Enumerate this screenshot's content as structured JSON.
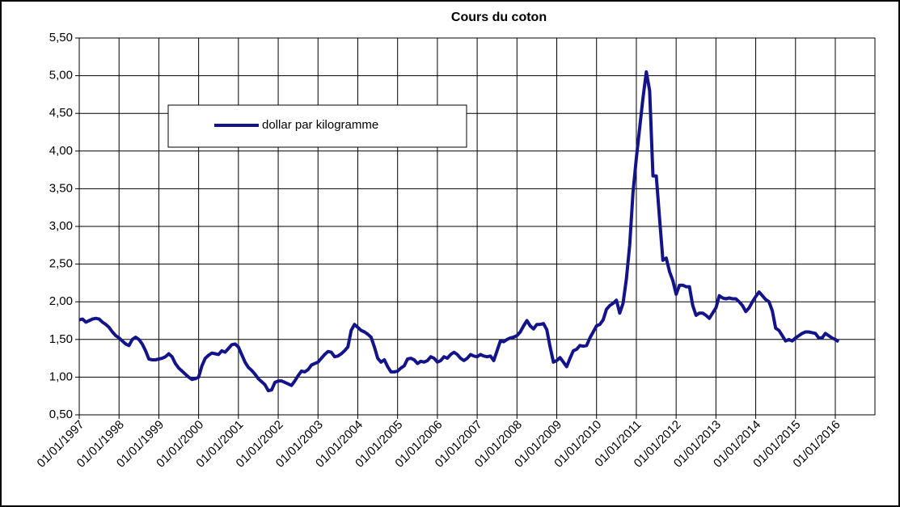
{
  "chart_data": {
    "type": "line",
    "title": "Cours du coton",
    "categories": [
      "01/01/1997",
      null,
      null,
      null,
      null,
      null,
      null,
      null,
      null,
      null,
      null,
      null,
      "01/01/1998",
      null,
      null,
      null,
      null,
      null,
      null,
      null,
      null,
      null,
      null,
      null,
      "01/01/1999",
      null,
      null,
      null,
      null,
      null,
      null,
      null,
      null,
      null,
      null,
      null,
      "01/01/2000",
      null,
      null,
      null,
      null,
      null,
      null,
      null,
      null,
      null,
      null,
      null,
      "01/01/2001",
      null,
      null,
      null,
      null,
      null,
      null,
      null,
      null,
      null,
      null,
      null,
      "01/01/2002",
      null,
      null,
      null,
      null,
      null,
      null,
      null,
      null,
      null,
      null,
      null,
      "01/01/2003",
      null,
      null,
      null,
      null,
      null,
      null,
      null,
      null,
      null,
      null,
      null,
      "01/01/2004",
      null,
      null,
      null,
      null,
      null,
      null,
      null,
      null,
      null,
      null,
      null,
      "01/01/2005",
      null,
      null,
      null,
      null,
      null,
      null,
      null,
      null,
      null,
      null,
      null,
      "01/01/2006",
      null,
      null,
      null,
      null,
      null,
      null,
      null,
      null,
      null,
      null,
      null,
      "01/01/2007",
      null,
      null,
      null,
      null,
      null,
      null,
      null,
      null,
      null,
      null,
      null,
      "01/01/2008",
      null,
      null,
      null,
      null,
      null,
      null,
      null,
      null,
      null,
      null,
      null,
      "01/01/2009",
      null,
      null,
      null,
      null,
      null,
      null,
      null,
      null,
      null,
      null,
      null,
      "01/01/2010",
      null,
      null,
      null,
      null,
      null,
      null,
      null,
      null,
      null,
      null,
      null,
      "01/01/2011",
      null,
      null,
      null,
      null,
      null,
      null,
      null,
      null,
      null,
      null,
      null,
      "01/01/2012",
      null,
      null,
      null,
      null,
      null,
      null,
      null,
      null,
      null,
      null,
      null,
      "01/01/2013",
      null,
      null,
      null,
      null,
      null,
      null,
      null,
      null,
      null,
      null,
      null,
      "01/01/2014",
      null,
      null,
      null,
      null,
      null,
      null,
      null,
      null,
      null,
      null,
      null,
      "01/01/2015",
      null,
      null,
      null,
      null,
      null,
      null,
      null,
      null,
      null,
      null,
      null,
      "01/01/2016",
      null
    ],
    "series": [
      {
        "name": "dollar par kilogramme",
        "color": "#14148a",
        "values": [
          1.76,
          1.77,
          1.73,
          1.75,
          1.77,
          1.78,
          1.77,
          1.73,
          1.7,
          1.66,
          1.6,
          1.55,
          1.52,
          1.48,
          1.44,
          1.42,
          1.5,
          1.53,
          1.5,
          1.44,
          1.35,
          1.24,
          1.23,
          1.23,
          1.24,
          1.25,
          1.27,
          1.31,
          1.27,
          1.18,
          1.12,
          1.08,
          1.04,
          1.0,
          0.97,
          0.98,
          1.0,
          1.15,
          1.25,
          1.29,
          1.32,
          1.31,
          1.3,
          1.35,
          1.33,
          1.38,
          1.43,
          1.44,
          1.4,
          1.3,
          1.2,
          1.13,
          1.09,
          1.04,
          0.98,
          0.94,
          0.9,
          0.82,
          0.83,
          0.93,
          0.95,
          0.95,
          0.93,
          0.91,
          0.89,
          0.95,
          1.02,
          1.08,
          1.07,
          1.1,
          1.16,
          1.18,
          1.2,
          1.25,
          1.3,
          1.34,
          1.33,
          1.27,
          1.28,
          1.31,
          1.35,
          1.4,
          1.62,
          1.7,
          1.66,
          1.62,
          1.6,
          1.57,
          1.53,
          1.4,
          1.25,
          1.2,
          1.23,
          1.14,
          1.07,
          1.07,
          1.08,
          1.12,
          1.15,
          1.24,
          1.25,
          1.23,
          1.18,
          1.21,
          1.2,
          1.22,
          1.27,
          1.25,
          1.2,
          1.22,
          1.27,
          1.25,
          1.3,
          1.33,
          1.3,
          1.25,
          1.22,
          1.25,
          1.3,
          1.28,
          1.27,
          1.3,
          1.28,
          1.27,
          1.28,
          1.22,
          1.35,
          1.48,
          1.47,
          1.5,
          1.52,
          1.53,
          1.55,
          1.6,
          1.68,
          1.75,
          1.68,
          1.64,
          1.7,
          1.7,
          1.71,
          1.63,
          1.4,
          1.2,
          1.22,
          1.26,
          1.2,
          1.14,
          1.25,
          1.35,
          1.37,
          1.42,
          1.41,
          1.42,
          1.52,
          1.6,
          1.68,
          1.7,
          1.76,
          1.9,
          1.95,
          1.98,
          2.02,
          1.85,
          1.98,
          2.3,
          2.75,
          3.45,
          3.9,
          4.3,
          4.7,
          5.05,
          4.8,
          3.67,
          3.67,
          3.1,
          2.55,
          2.58,
          2.4,
          2.28,
          2.1,
          2.22,
          2.22,
          2.2,
          2.2,
          1.95,
          1.82,
          1.85,
          1.85,
          1.82,
          1.78,
          1.85,
          1.92,
          2.08,
          2.05,
          2.04,
          2.05,
          2.04,
          2.04,
          2.0,
          1.95,
          1.87,
          1.92,
          2.0,
          2.07,
          2.13,
          2.08,
          2.03,
          2.0,
          1.88,
          1.65,
          1.62,
          1.55,
          1.48,
          1.5,
          1.48,
          1.52,
          1.55,
          1.58,
          1.6,
          1.6,
          1.59,
          1.58,
          1.52,
          1.52,
          1.58,
          1.55,
          1.52,
          1.5,
          1.47
        ]
      }
    ],
    "ylim": [
      0.5,
      5.5
    ],
    "yticks": [
      {
        "value": 0.5,
        "label": "0,50"
      },
      {
        "value": 1,
        "label": "1,00"
      },
      {
        "value": 1.5,
        "label": "1,50"
      },
      {
        "value": 2,
        "label": "2,00"
      },
      {
        "value": 2.5,
        "label": "2,50"
      },
      {
        "value": 3,
        "label": "3,00"
      },
      {
        "value": 3.5,
        "label": "3,50"
      },
      {
        "value": 4,
        "label": "4,00"
      },
      {
        "value": 4.5,
        "label": "4,50"
      },
      {
        "value": 5,
        "label": "5,00"
      },
      {
        "value": 5.5,
        "label": "5,50"
      }
    ],
    "grid": true,
    "legend": "upper left"
  }
}
